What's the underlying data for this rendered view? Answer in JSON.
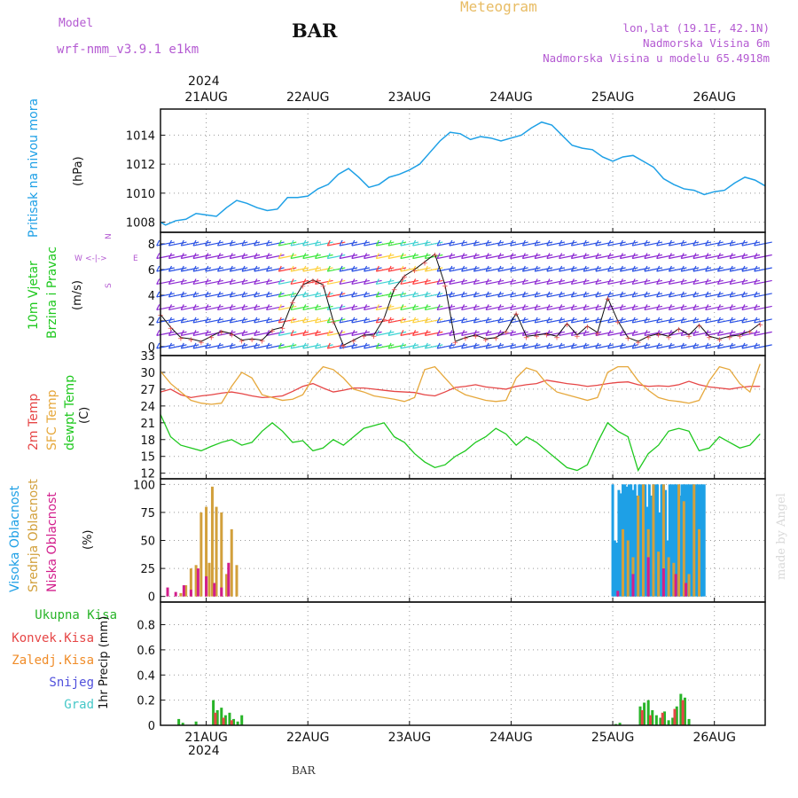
{
  "header": {
    "model_label": "Model",
    "model_name": "wrf-nmm_v3.9.1  e1km",
    "station": "BAR",
    "title": "Meteogram",
    "lonlat": "lon,lat (19.1E, 42.1N)",
    "elevation": "Nadmorska Visina 6m",
    "model_elevation": "Nadmorska Visina u modelu 65.4918m",
    "year": "2024",
    "bottom_label": "BAR",
    "credit": "made by Angel"
  },
  "colors": {
    "pressure": "#1ea0e6",
    "wind_purple": "#8c28d2",
    "wind_blue": "#2850e6",
    "temp2m": "#e64646",
    "sfc": "#e6a83c",
    "dewpt": "#1ec81e",
    "high_cloud": "#1ea0e6",
    "mid_cloud": "#d2a03c",
    "low_cloud": "#d21e8c",
    "total_precip": "#28b428",
    "conv_precip": "#e64646",
    "frz_precip": "#f08c28",
    "snow": "#5050dc",
    "hail": "#46c8c8"
  },
  "chart_data": {
    "type": "meteogram",
    "x_axis": {
      "ticks": [
        "21AUG",
        "22AUG",
        "23AUG",
        "24AUG",
        "25AUG",
        "26AUG"
      ],
      "year": "2024",
      "range_days": [
        20.55,
        26.5
      ]
    },
    "panels": [
      {
        "id": "pressure",
        "type": "line",
        "label": "Pritisak na nivou mora",
        "unit": "(hPa)",
        "ylim": [
          1007.3,
          1015.8
        ],
        "yticks": [
          1008,
          1010,
          1012,
          1014
        ],
        "series": [
          {
            "name": "Pritisak na nivou mora",
            "x": [
              20.55,
              20.6,
              20.7,
              20.8,
              20.9,
              21.0,
              21.1,
              21.2,
              21.3,
              21.4,
              21.5,
              21.6,
              21.7,
              21.8,
              21.9,
              22.0,
              22.1,
              22.2,
              22.3,
              22.4,
              22.5,
              22.6,
              22.7,
              22.8,
              22.9,
              23.0,
              23.1,
              23.2,
              23.3,
              23.4,
              23.5,
              23.6,
              23.7,
              23.8,
              23.9,
              24.0,
              24.1,
              24.2,
              24.3,
              24.4,
              24.5,
              24.6,
              24.7,
              24.8,
              24.9,
              25.0,
              25.1,
              25.2,
              25.3,
              25.4,
              25.5,
              25.6,
              25.7,
              25.8,
              25.9,
              26.0,
              26.1,
              26.2,
              26.3,
              26.4,
              26.5
            ],
            "y": [
              1008.0,
              1007.8,
              1008.1,
              1008.2,
              1008.6,
              1008.5,
              1008.4,
              1009.0,
              1009.5,
              1009.3,
              1009.0,
              1008.8,
              1008.9,
              1009.7,
              1009.7,
              1009.8,
              1010.3,
              1010.6,
              1011.3,
              1011.7,
              1011.1,
              1010.4,
              1010.6,
              1011.1,
              1011.3,
              1011.6,
              1012.0,
              1012.8,
              1013.6,
              1014.2,
              1014.1,
              1013.7,
              1013.9,
              1013.8,
              1013.6,
              1013.8,
              1014.0,
              1014.5,
              1014.9,
              1014.7,
              1014.0,
              1013.3,
              1013.1,
              1013.0,
              1012.5,
              1012.2,
              1012.5,
              1012.6,
              1012.2,
              1011.8,
              1011.0,
              1010.6,
              1010.3,
              1010.2,
              1009.9,
              1010.1,
              1010.2,
              1010.7,
              1011.1,
              1010.9,
              1010.5
            ]
          }
        ]
      },
      {
        "id": "wind",
        "type": "barbs",
        "label": "10m Vjetar",
        "label2": "Brzina i Pravac",
        "unit": "(m/s)",
        "compass": {
          "n": "N",
          "s": "S",
          "e": "E",
          "w": "W"
        },
        "ylim": [
          -0.7,
          8.9
        ],
        "yticks": [
          0,
          2,
          4,
          6,
          8
        ],
        "series": [
          {
            "name": "Brzina",
            "x": [
              20.55,
              20.65,
              20.75,
              20.85,
              20.95,
              21.05,
              21.15,
              21.25,
              21.35,
              21.45,
              21.55,
              21.65,
              21.75,
              21.85,
              21.95,
              22.05,
              22.15,
              22.25,
              22.35,
              22.45,
              22.55,
              22.65,
              22.75,
              22.85,
              22.95,
              23.05,
              23.15,
              23.25,
              23.35,
              23.45,
              23.55,
              23.65,
              23.75,
              23.85,
              23.95,
              24.05,
              24.15,
              24.25,
              24.35,
              24.45,
              24.55,
              24.65,
              24.75,
              24.85,
              24.95,
              25.05,
              25.15,
              25.25,
              25.35,
              25.45,
              25.55,
              25.65,
              25.75,
              25.85,
              25.95,
              26.05,
              26.15,
              26.25,
              26.35,
              26.45
            ],
            "y": [
              2.5,
              1.5,
              0.7,
              0.6,
              0.4,
              0.8,
              1.2,
              1.0,
              0.5,
              0.6,
              0.5,
              1.3,
              1.5,
              3.5,
              4.8,
              5.2,
              4.8,
              2.0,
              0.1,
              0.5,
              0.9,
              0.9,
              2.2,
              4.5,
              5.5,
              6.0,
              6.6,
              7.2,
              4.8,
              0.4,
              0.7,
              0.9,
              0.6,
              0.7,
              1.2,
              2.6,
              0.8,
              0.9,
              1.0,
              0.8,
              1.8,
              0.9,
              1.6,
              1.1,
              3.8,
              2.0,
              0.7,
              0.4,
              0.8,
              1.0,
              0.8,
              1.4,
              0.9,
              1.7,
              0.8,
              0.6,
              0.8,
              0.9,
              1.2,
              1.8
            ]
          }
        ]
      },
      {
        "id": "temp",
        "type": "line",
        "labels": [
          "2m Temp",
          "SFC Temp",
          "dewpt Temp"
        ],
        "unit": "(C)",
        "ylim": [
          11,
          33
        ],
        "yticks": [
          12,
          15,
          18,
          21,
          24,
          27,
          30,
          33
        ],
        "x": [
          20.55,
          20.65,
          20.75,
          20.85,
          20.95,
          21.05,
          21.15,
          21.25,
          21.35,
          21.45,
          21.55,
          21.65,
          21.75,
          21.85,
          21.95,
          22.05,
          22.15,
          22.25,
          22.35,
          22.45,
          22.55,
          22.65,
          22.75,
          22.85,
          22.95,
          23.05,
          23.15,
          23.25,
          23.35,
          23.45,
          23.55,
          23.65,
          23.75,
          23.85,
          23.95,
          24.05,
          24.15,
          24.25,
          24.35,
          24.45,
          24.55,
          24.65,
          24.75,
          24.85,
          24.95,
          25.05,
          25.15,
          25.25,
          25.35,
          25.45,
          25.55,
          25.65,
          25.75,
          25.85,
          25.95,
          26.05,
          26.15,
          26.25,
          26.35,
          26.45
        ],
        "series": [
          {
            "name": "2m Temp",
            "color": "temp2m",
            "y": [
              26.5,
              27.0,
              26.0,
              25.5,
              25.8,
              26.0,
              26.3,
              26.5,
              26.2,
              25.8,
              25.5,
              25.6,
              25.8,
              26.6,
              27.5,
              28.0,
              27.2,
              26.5,
              26.8,
              27.2,
              27.2,
              27.0,
              26.8,
              26.6,
              26.5,
              26.4,
              26.0,
              25.8,
              26.5,
              27.3,
              27.5,
              27.8,
              27.4,
              27.2,
              27.0,
              27.5,
              27.8,
              28.0,
              28.6,
              28.3,
              28.0,
              27.8,
              27.5,
              27.7,
              28.0,
              28.2,
              28.3,
              27.8,
              27.5,
              27.6,
              27.5,
              27.8,
              28.4,
              27.8,
              27.4,
              27.2,
              27.0,
              27.3,
              27.5,
              27.5
            ]
          },
          {
            "name": "SFC Temp",
            "color": "sfc",
            "y": [
              30.2,
              28.0,
              26.5,
              25.0,
              24.5,
              24.3,
              24.5,
              27.5,
              30.0,
              29.0,
              26.0,
              25.5,
              25.0,
              25.2,
              26.0,
              29.0,
              31.0,
              30.5,
              29.0,
              27.0,
              26.5,
              25.8,
              25.5,
              25.2,
              24.8,
              25.5,
              30.5,
              31.0,
              29.0,
              27.0,
              26.0,
              25.5,
              25.0,
              24.8,
              25.0,
              29.0,
              30.8,
              30.2,
              28.0,
              26.5,
              26.0,
              25.5,
              25.0,
              25.5,
              30.0,
              31.0,
              31.0,
              28.5,
              26.8,
              25.5,
              25.0,
              24.8,
              24.5,
              25.0,
              28.5,
              31.0,
              30.5,
              28.0,
              26.5,
              31.5
            ]
          },
          {
            "name": "dewpt Temp",
            "color": "dewpt",
            "y": [
              22.5,
              18.5,
              17.0,
              16.5,
              16.0,
              16.8,
              17.5,
              18.0,
              17.0,
              17.5,
              19.5,
              21.0,
              19.5,
              17.5,
              17.8,
              16.0,
              16.5,
              18.0,
              17.0,
              18.5,
              20.0,
              20.5,
              21.0,
              18.5,
              17.5,
              15.5,
              14.0,
              13.0,
              13.5,
              15.0,
              16.0,
              17.5,
              18.5,
              20.0,
              19.0,
              17.0,
              18.5,
              17.5,
              16.0,
              14.5,
              13.0,
              12.5,
              13.5,
              17.5,
              21.0,
              19.5,
              18.5,
              12.5,
              15.5,
              17.0,
              19.5,
              20.0,
              19.5,
              16.0,
              16.5,
              18.5,
              17.5,
              16.5,
              17.0,
              19.0
            ]
          }
        ]
      },
      {
        "id": "cloud",
        "type": "bar",
        "labels": [
          "Visoka Oblacnost",
          "Srednja Oblacnost",
          "Niska Oblacnost"
        ],
        "unit": "(%)",
        "ylim": [
          -5,
          105
        ],
        "yticks": [
          0,
          25,
          50,
          75,
          100
        ],
        "series": [
          {
            "name": "Visoka Oblacnost",
            "color": "high_cloud",
            "x": [
              25.0,
              25.02,
              25.04,
              25.06,
              25.08,
              25.1,
              25.12,
              25.14,
              25.16,
              25.18,
              25.2,
              25.22,
              25.24,
              25.26,
              25.28,
              25.3,
              25.32,
              25.34,
              25.36,
              25.38,
              25.4,
              25.42,
              25.44,
              25.46,
              25.48,
              25.5,
              25.52,
              25.54,
              25.56,
              25.58,
              25.6,
              25.62,
              25.64,
              25.66,
              25.68,
              25.7,
              25.72,
              25.74,
              25.76,
              25.78,
              25.8,
              25.82,
              25.84,
              25.86,
              25.88,
              25.9
            ],
            "y": [
              100,
              50,
              48,
              95,
              92,
              100,
              100,
              98,
              100,
              100,
              95,
              100,
              90,
              100,
              100,
              100,
              100,
              80,
              100,
              90,
              100,
              100,
              100,
              75,
              100,
              100,
              95,
              50,
              100,
              100,
              100,
              100,
              100,
              90,
              100,
              100,
              100,
              100,
              100,
              100,
              100,
              100,
              100,
              100,
              100,
              100
            ]
          },
          {
            "name": "Srednja Oblacnost",
            "color": "mid_cloud",
            "x": [
              20.75,
              20.8,
              20.85,
              20.9,
              20.95,
              21.0,
              21.03,
              21.06,
              21.1,
              21.15,
              21.2,
              21.25,
              21.3,
              25.1,
              25.15,
              25.2,
              25.25,
              25.3,
              25.35,
              25.4,
              25.45,
              25.5,
              25.55,
              25.6,
              25.65,
              25.7,
              25.75,
              25.8,
              25.85
            ],
            "y": [
              3,
              10,
              25,
              28,
              75,
              80,
              30,
              98,
              80,
              75,
              20,
              60,
              28,
              60,
              50,
              35,
              90,
              100,
              60,
              100,
              40,
              100,
              35,
              30,
              100,
              85,
              20,
              100,
              60
            ]
          },
          {
            "name": "Niska Oblacnost",
            "color": "low_cloud",
            "x": [
              20.62,
              20.7,
              20.78,
              20.85,
              20.92,
              21.0,
              21.08,
              21.15,
              21.22,
              25.05,
              25.2,
              25.35,
              25.5,
              25.62,
              25.72
            ],
            "y": [
              8,
              4,
              10,
              6,
              25,
              18,
              12,
              8,
              30,
              5,
              20,
              35,
              25,
              20,
              12
            ]
          }
        ]
      },
      {
        "id": "precip",
        "type": "bar",
        "labels": [
          "Ukupna Kisa",
          "Konvek.Kisa",
          "Zaledj.Kisa",
          "Snijeg",
          "Grad"
        ],
        "unit": "1hr Precip (mm)",
        "ylim": [
          0,
          0.98
        ],
        "yticks": [
          0,
          0.2,
          0.4,
          0.6,
          0.8
        ],
        "series": [
          {
            "name": "Ukupna Kisa",
            "color": "total_precip",
            "x": [
              20.73,
              20.77,
              20.9,
              21.07,
              21.11,
              21.15,
              21.19,
              21.23,
              21.27,
              21.31,
              21.35,
              25.03,
              25.07,
              25.27,
              25.31,
              25.35,
              25.39,
              25.43,
              25.47,
              25.51,
              25.55,
              25.59,
              25.63,
              25.67,
              25.71,
              25.75
            ],
            "y": [
              0.05,
              0.02,
              0.03,
              0.2,
              0.12,
              0.14,
              0.08,
              0.1,
              0.05,
              0.03,
              0.08,
              0.01,
              0.02,
              0.15,
              0.18,
              0.2,
              0.12,
              0.08,
              0.06,
              0.11,
              0.04,
              0.06,
              0.15,
              0.25,
              0.22,
              0.05
            ]
          },
          {
            "name": "Konvek.Kisa",
            "color": "conv_precip",
            "x": [
              21.09,
              21.17,
              21.25,
              25.29,
              25.37,
              25.49,
              25.61,
              25.69
            ],
            "y": [
              0.1,
              0.06,
              0.04,
              0.12,
              0.08,
              0.1,
              0.13,
              0.2
            ]
          }
        ]
      }
    ]
  }
}
